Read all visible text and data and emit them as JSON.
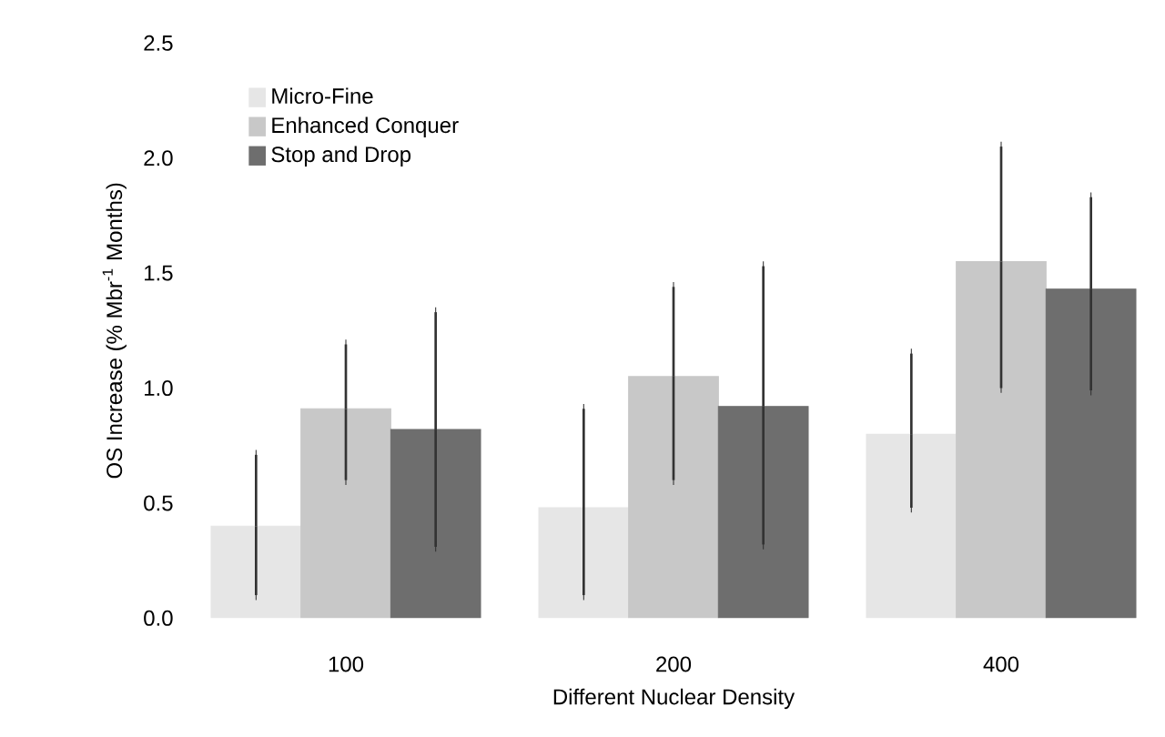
{
  "chart_data": {
    "type": "bar",
    "xlabel": "Different Nuclear Density",
    "ylabel": "OS Increase (% Mbr$^{-1}$ Months)",
    "categories": [
      "100",
      "200",
      "400"
    ],
    "series": [
      {
        "name": "Micro-Fine",
        "color": "#e6e6e6",
        "values": [
          0.4,
          0.48,
          0.8
        ],
        "errors": [
          [
            0.1,
            0.71
          ],
          [
            0.1,
            0.91
          ],
          [
            0.48,
            1.15
          ]
        ]
      },
      {
        "name": "Enhanced Conquer",
        "color": "#c8c8c8",
        "values": [
          0.91,
          1.05,
          1.55
        ],
        "errors": [
          [
            0.6,
            1.19
          ],
          [
            0.6,
            1.44
          ],
          [
            1.0,
            2.05
          ]
        ]
      },
      {
        "name": "Stop and Drop",
        "color": "#6e6e6e",
        "values": [
          0.82,
          0.92,
          1.43
        ],
        "errors": [
          [
            0.31,
            1.33
          ],
          [
            0.32,
            1.53
          ],
          [
            0.99,
            1.83
          ]
        ]
      }
    ],
    "ylim": [
      0,
      2.5
    ],
    "yticks": [
      {
        "value": 0,
        "label": "0.0"
      },
      0.5,
      {
        "value": 1,
        "label": "1.0"
      },
      1.5,
      {
        "value": 2,
        "label": "2.0"
      },
      2.5
    ],
    "legend": "top left"
  }
}
